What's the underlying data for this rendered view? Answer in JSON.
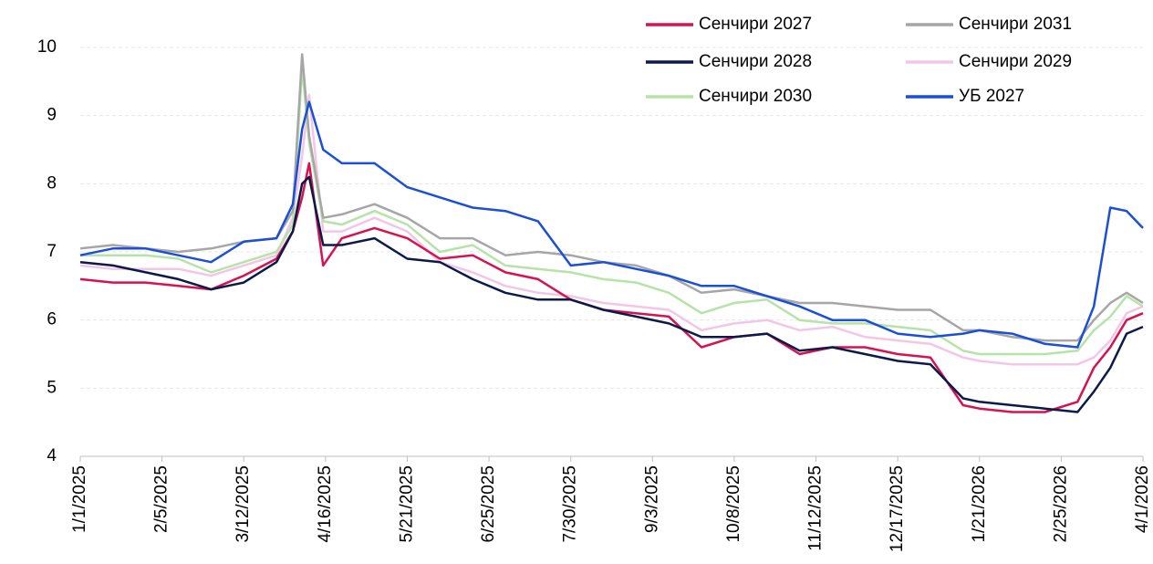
{
  "chart_data": {
    "type": "line",
    "x": [
      "1/1/2025",
      "1/15/2025",
      "1/29/2025",
      "2/12/2025",
      "2/26/2025",
      "3/12/2025",
      "3/26/2025",
      "4/2/2025",
      "4/6/2025",
      "4/9/2025",
      "4/15/2025",
      "4/23/2025",
      "5/7/2025",
      "5/21/2025",
      "6/4/2025",
      "6/18/2025",
      "7/2/2025",
      "7/16/2025",
      "7/30/2025",
      "8/13/2025",
      "8/27/2025",
      "9/10/2025",
      "9/24/2025",
      "10/8/2025",
      "10/22/2025",
      "11/5/2025",
      "11/19/2025",
      "12/3/2025",
      "12/17/2025",
      "12/31/2025",
      "1/14/2026",
      "1/21/2026",
      "2/4/2026",
      "2/18/2026",
      "3/4/2026",
      "3/11/2026",
      "3/18/2026",
      "3/25/2026",
      "4/1/2026"
    ],
    "series": [
      {
        "name": "Сенчири 2027",
        "color": "#d6124f",
        "values": [
          6.6,
          6.55,
          6.55,
          6.5,
          6.45,
          6.65,
          6.9,
          7.3,
          7.8,
          8.3,
          6.8,
          7.2,
          7.35,
          7.2,
          6.9,
          6.95,
          6.7,
          6.6,
          6.3,
          6.15,
          6.1,
          6.05,
          5.6,
          5.75,
          5.8,
          5.5,
          5.6,
          5.6,
          5.5,
          5.45,
          4.75,
          4.7,
          4.65,
          4.65,
          4.8,
          5.3,
          5.6,
          6.0,
          6.1
        ]
      },
      {
        "name": "Сенчири 2031",
        "color": "#a6a6a6",
        "values": [
          7.05,
          7.1,
          7.05,
          7.0,
          7.05,
          7.15,
          7.2,
          7.6,
          9.9,
          8.7,
          7.5,
          7.55,
          7.7,
          7.5,
          7.2,
          7.2,
          6.95,
          7.0,
          6.95,
          6.85,
          6.8,
          6.65,
          6.4,
          6.45,
          6.35,
          6.25,
          6.25,
          6.2,
          6.15,
          6.15,
          5.85,
          5.85,
          5.75,
          5.7,
          5.7,
          6.0,
          6.25,
          6.4,
          6.25
        ]
      },
      {
        "name": "Сенчири 2028",
        "color": "#0b1a4a",
        "values": [
          6.85,
          6.8,
          6.7,
          6.6,
          6.45,
          6.55,
          6.85,
          7.3,
          8.0,
          8.1,
          7.1,
          7.1,
          7.2,
          6.9,
          6.85,
          6.6,
          6.4,
          6.3,
          6.3,
          6.15,
          6.05,
          5.95,
          5.75,
          5.75,
          5.8,
          5.55,
          5.6,
          5.5,
          5.4,
          5.35,
          4.85,
          4.8,
          4.75,
          4.7,
          4.65,
          4.95,
          5.3,
          5.8,
          5.9
        ]
      },
      {
        "name": "Сенчири 2029",
        "color": "#f3c6e8",
        "values": [
          6.8,
          6.75,
          6.75,
          6.75,
          6.65,
          6.8,
          6.95,
          7.5,
          8.4,
          9.3,
          7.3,
          7.3,
          7.5,
          7.3,
          6.85,
          6.7,
          6.5,
          6.4,
          6.35,
          6.25,
          6.2,
          6.15,
          5.85,
          5.95,
          6.0,
          5.85,
          5.9,
          5.75,
          5.7,
          5.65,
          5.45,
          5.4,
          5.35,
          5.35,
          5.35,
          5.45,
          5.7,
          6.1,
          6.2
        ]
      },
      {
        "name": "Сенчири 2030",
        "color": "#b6e3a7",
        "values": [
          6.95,
          6.95,
          6.95,
          6.9,
          6.7,
          6.85,
          7.0,
          7.4,
          9.7,
          8.6,
          7.45,
          7.4,
          7.6,
          7.4,
          7.0,
          7.1,
          6.8,
          6.75,
          6.7,
          6.6,
          6.55,
          6.4,
          6.1,
          6.25,
          6.3,
          6.0,
          5.95,
          5.95,
          5.9,
          5.85,
          5.55,
          5.5,
          5.5,
          5.5,
          5.55,
          5.85,
          6.05,
          6.35,
          6.2
        ]
      },
      {
        "name": "УБ 2027",
        "color": "#1a4fd6",
        "values": [
          6.95,
          7.05,
          7.05,
          6.95,
          6.85,
          7.15,
          7.2,
          7.7,
          8.8,
          9.2,
          8.5,
          8.3,
          8.3,
          7.95,
          7.8,
          7.65,
          7.6,
          7.45,
          6.8,
          6.85,
          6.75,
          6.65,
          6.5,
          6.5,
          6.35,
          6.2,
          6.0,
          6.0,
          5.8,
          5.75,
          5.8,
          5.85,
          5.8,
          5.65,
          5.6,
          6.2,
          7.65,
          7.6,
          7.35
        ]
      }
    ],
    "xlim": [
      "1/1/2025",
      "4/1/2026"
    ],
    "xticks": [
      "1/1/2025",
      "2/5/2025",
      "3/12/2025",
      "4/16/2025",
      "5/21/2025",
      "6/25/2025",
      "7/30/2025",
      "9/3/2025",
      "10/8/2025",
      "11/12/2025",
      "12/17/2025",
      "1/21/2026",
      "2/25/2026",
      "4/1/2026"
    ],
    "ylim": [
      4,
      10
    ],
    "yticks": [
      4,
      5,
      6,
      7,
      8,
      9,
      10
    ],
    "grid": true,
    "legend": "top-right"
  }
}
